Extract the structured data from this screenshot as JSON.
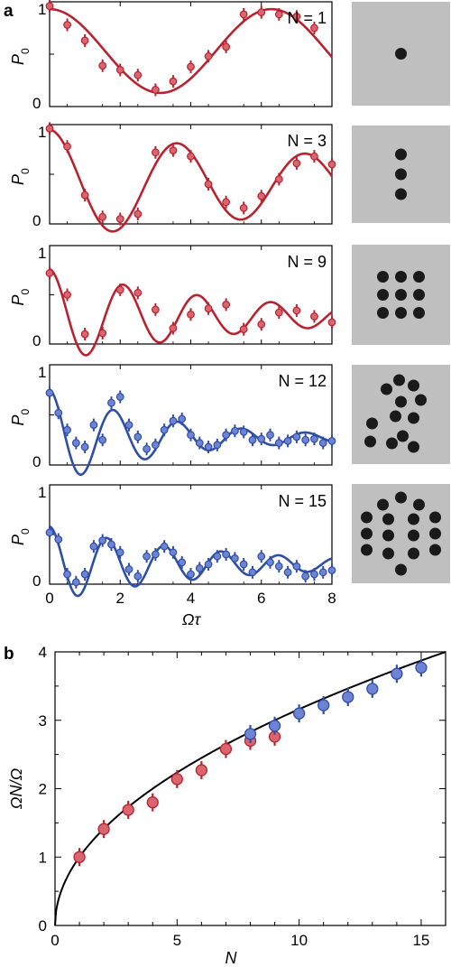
{
  "panel_labels": {
    "a": "a",
    "b": "b"
  },
  "colors": {
    "red": "#b8232f",
    "red_fill": "#d9656f",
    "blue": "#2e4fa6",
    "blue_fill": "#6f83d4",
    "gray": "#bfbfbf",
    "atom": "#1a1a1a"
  },
  "panel_a": {
    "xlabel": "Ωτ",
    "ylabel": "P",
    "ylabel_sub": "0",
    "x_ticks": [
      "0",
      "2",
      "4",
      "6",
      "8"
    ],
    "y_ticks": [
      "0",
      "1"
    ],
    "plots": [
      {
        "label": "N = 1",
        "color": "red",
        "atoms": 1
      },
      {
        "label": "N = 3",
        "color": "red",
        "atoms": 3
      },
      {
        "label": "N = 9",
        "color": "red",
        "atoms": 9
      },
      {
        "label": "N = 12",
        "color": "blue",
        "atoms": 12
      },
      {
        "label": "N = 15",
        "color": "blue",
        "atoms": 15
      }
    ]
  },
  "chart_data": [
    {
      "type": "scatter",
      "title": "N = 1",
      "xlabel": "Ωτ",
      "ylabel": "P0",
      "xlim": [
        0,
        8
      ],
      "ylim": [
        0,
        1
      ],
      "color": "red",
      "points": {
        "x": [
          0.0,
          0.5,
          1.0,
          1.5,
          2.0,
          2.5,
          3.0,
          3.5,
          4.0,
          4.5,
          5.0,
          5.5,
          6.0,
          6.5,
          7.0,
          7.5
        ],
        "y": [
          0.96,
          0.78,
          0.63,
          0.39,
          0.35,
          0.3,
          0.16,
          0.24,
          0.38,
          0.48,
          0.57,
          0.88,
          0.9,
          0.88,
          0.86,
          0.75
        ]
      },
      "fit": {
        "model": "0.53 + 0.40*cos(x)"
      }
    },
    {
      "type": "scatter",
      "title": "N = 3",
      "xlabel": "Ωτ",
      "ylabel": "P0",
      "xlim": [
        0,
        8
      ],
      "ylim": [
        0,
        1
      ],
      "color": "red",
      "points": {
        "x": [
          0.0,
          0.5,
          1.0,
          1.5,
          2.0,
          2.5,
          3.0,
          3.5,
          4.0,
          4.5,
          5.0,
          5.5,
          6.0,
          6.5,
          7.0,
          7.5,
          8.0
        ],
        "y": [
          0.96,
          0.78,
          0.29,
          0.07,
          0.05,
          0.1,
          0.72,
          0.74,
          0.68,
          0.4,
          0.22,
          0.16,
          0.28,
          0.45,
          0.61,
          0.68,
          0.6
        ]
      },
      "fit": {
        "model": "0.40 + 0.55*exp(-0.08x)*cos(1.732x)"
      }
    },
    {
      "type": "scatter",
      "title": "N = 9",
      "xlabel": "Ωτ",
      "ylabel": "P0",
      "xlim": [
        0,
        8
      ],
      "ylim": [
        0,
        1
      ],
      "color": "red",
      "points": {
        "x": [
          0.0,
          0.5,
          1.0,
          1.5,
          2.0,
          2.5,
          3.0,
          3.5,
          4.0,
          4.5,
          5.0,
          5.5,
          6.0,
          6.5,
          7.0,
          7.5,
          8.0
        ],
        "y": [
          0.72,
          0.5,
          0.1,
          0.11,
          0.55,
          0.52,
          0.35,
          0.16,
          0.3,
          0.36,
          0.4,
          0.15,
          0.2,
          0.32,
          0.34,
          0.28,
          0.22
        ]
      },
      "fit": {
        "model": "0.28 + 0.48*exp(-0.19x)*cos(3x)"
      }
    },
    {
      "type": "scatter",
      "title": "N = 12",
      "xlabel": "Ωτ",
      "ylabel": "P0",
      "xlim": [
        0,
        8
      ],
      "ylim": [
        0,
        1
      ],
      "color": "blue",
      "points": {
        "x": [
          0.0,
          0.25,
          0.5,
          0.75,
          1.0,
          1.25,
          1.5,
          1.75,
          2.0,
          2.25,
          2.5,
          2.75,
          3.0,
          3.25,
          3.5,
          3.75,
          4.0,
          4.25,
          4.5,
          4.75,
          5.0,
          5.25,
          5.5,
          5.75,
          6.0,
          6.25,
          6.5,
          6.75,
          7.0,
          7.25,
          7.5,
          7.75,
          8.0
        ],
        "y": [
          0.72,
          0.52,
          0.35,
          0.22,
          0.18,
          0.4,
          0.25,
          0.62,
          0.68,
          0.4,
          0.28,
          0.16,
          0.2,
          0.35,
          0.44,
          0.46,
          0.3,
          0.22,
          0.18,
          0.2,
          0.3,
          0.34,
          0.33,
          0.25,
          0.26,
          0.3,
          0.22,
          0.24,
          0.28,
          0.25,
          0.26,
          0.22,
          0.24
        ]
      },
      "fit": {
        "model": "0.27 + 0.48*exp(-0.30x)*cos(3.46x)"
      }
    },
    {
      "type": "scatter",
      "title": "N = 15",
      "xlabel": "Ωτ",
      "ylabel": "P0",
      "xlim": [
        0,
        8
      ],
      "ylim": [
        0,
        1
      ],
      "color": "blue",
      "points": {
        "x": [
          0.0,
          0.25,
          0.5,
          0.75,
          1.0,
          1.25,
          1.5,
          1.75,
          2.0,
          2.25,
          2.5,
          2.75,
          3.0,
          3.25,
          3.5,
          3.75,
          4.0,
          4.25,
          4.5,
          4.75,
          5.0,
          5.25,
          5.5,
          5.75,
          6.0,
          6.25,
          6.5,
          6.75,
          7.0,
          7.25,
          7.5,
          7.75,
          8.0
        ],
        "y": [
          0.52,
          0.45,
          0.1,
          0.02,
          0.1,
          0.38,
          0.44,
          0.4,
          0.32,
          0.15,
          0.08,
          0.28,
          0.3,
          0.38,
          0.32,
          0.22,
          0.1,
          0.16,
          0.2,
          0.28,
          0.3,
          0.26,
          0.2,
          0.12,
          0.28,
          0.22,
          0.18,
          0.12,
          0.18,
          0.08,
          0.1,
          0.12,
          0.14
        ]
      },
      "fit": {
        "model": "0.20 + 0.38*exp(-0.22x)*cos(3.87x)"
      }
    },
    {
      "type": "scatter",
      "title": "",
      "xlabel": "N",
      "ylabel": "ΩN/Ω",
      "xlim": [
        0,
        16
      ],
      "ylim": [
        0,
        4
      ],
      "x_ticks": [
        "0",
        "5",
        "10",
        "15"
      ],
      "y_ticks": [
        "0",
        "1",
        "2",
        "3",
        "4"
      ],
      "series": [
        {
          "color": "red",
          "x": [
            1,
            2,
            3,
            4,
            5,
            6,
            7,
            8,
            9
          ],
          "y": [
            1.0,
            1.41,
            1.69,
            1.8,
            2.14,
            2.27,
            2.58,
            2.7,
            2.76
          ]
        },
        {
          "color": "blue",
          "x": [
            8,
            9,
            10,
            11,
            12,
            13,
            14,
            15
          ],
          "y": [
            2.8,
            2.92,
            3.1,
            3.22,
            3.34,
            3.46,
            3.68,
            3.77
          ]
        }
      ],
      "fit": {
        "model": "sqrt(x)"
      }
    }
  ]
}
